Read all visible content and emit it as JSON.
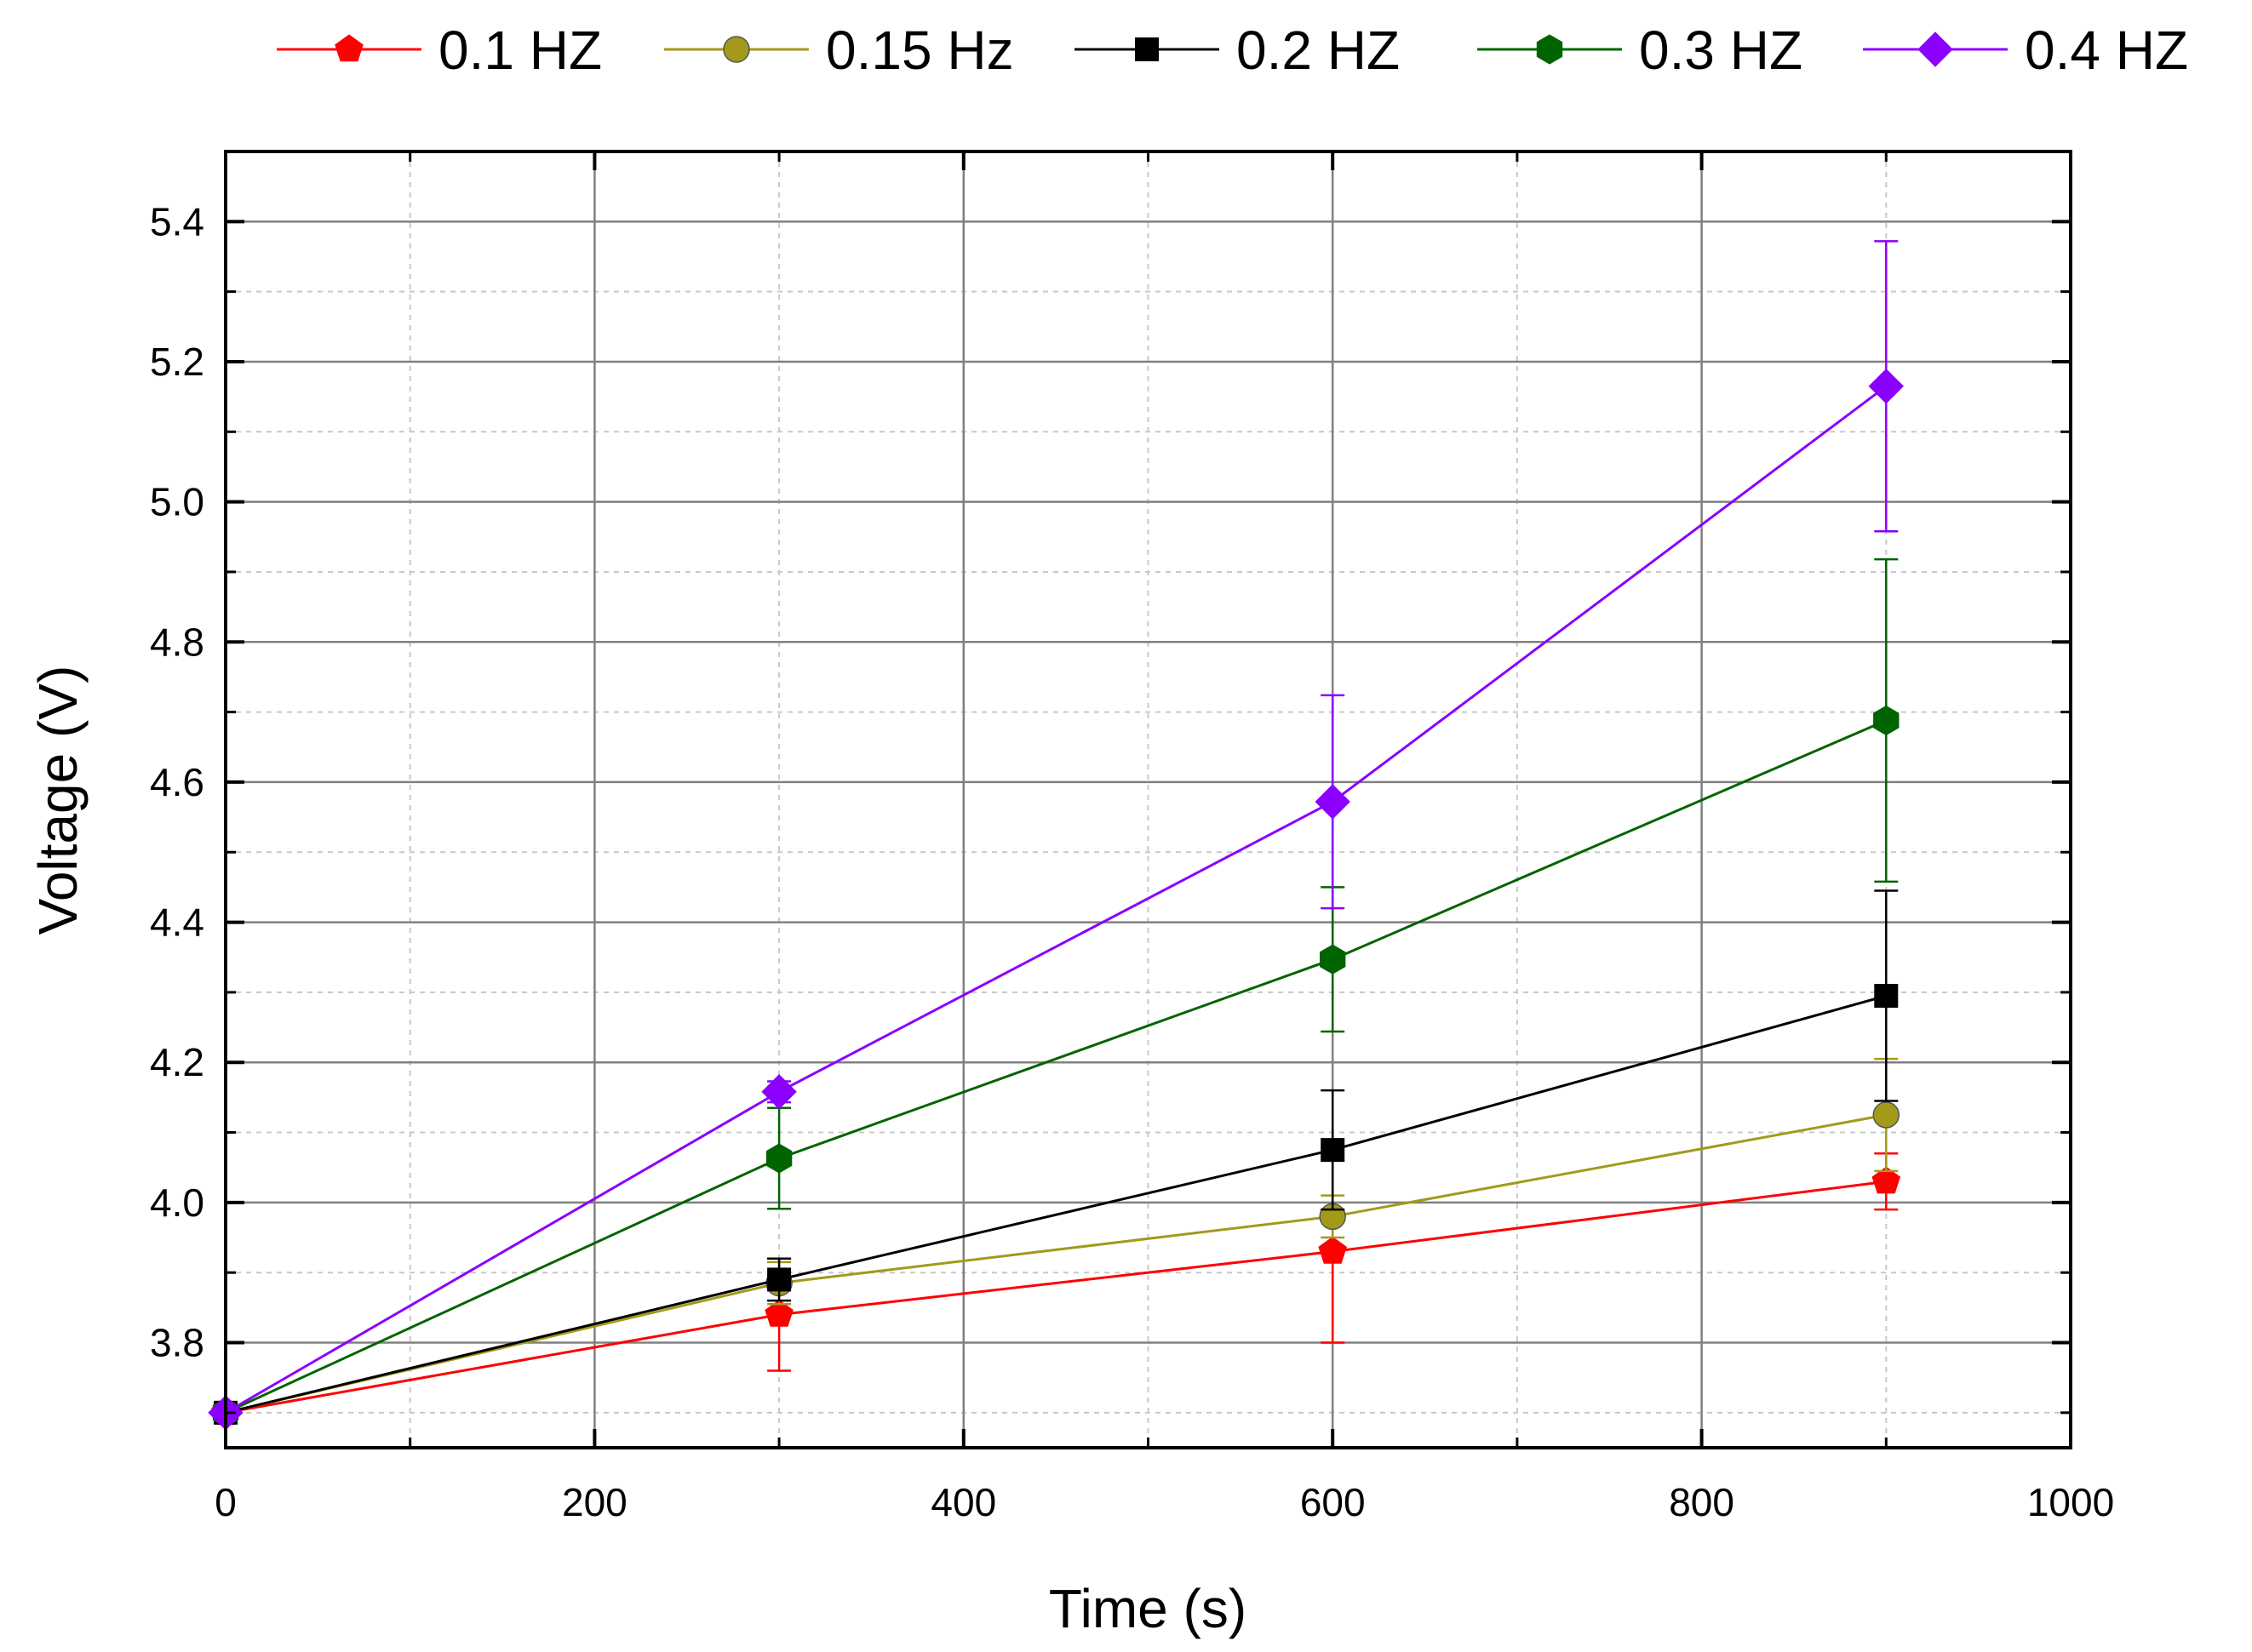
{
  "chart_data": {
    "type": "line",
    "title": "",
    "xlabel": "Time (s)",
    "ylabel": "Voltage (V)",
    "xlim": [
      0,
      1000
    ],
    "ylim": [
      3.65,
      5.5
    ],
    "x_ticks": [
      0,
      200,
      400,
      600,
      800,
      1000
    ],
    "y_ticks": [
      3.8,
      4.0,
      4.2,
      4.4,
      4.6,
      4.8,
      5.0,
      5.2,
      5.4
    ],
    "grid": true,
    "legend_position": "top",
    "series": [
      {
        "name": "0.1 HZ",
        "color": "#ff0000",
        "marker": "pentagon",
        "x": [
          0,
          300,
          600,
          900
        ],
        "y": [
          3.7,
          3.84,
          3.93,
          4.03
        ],
        "err": [
          0,
          0.08,
          0.13,
          0.04
        ]
      },
      {
        "name": "0.15 Hz",
        "color": "#a39a1a",
        "marker": "circle",
        "x": [
          0,
          300,
          600,
          900
        ],
        "y": [
          3.7,
          3.885,
          3.98,
          4.125
        ],
        "err": [
          0,
          0.03,
          0.03,
          0.08
        ]
      },
      {
        "name": "0.2 HZ",
        "color": "#000000",
        "marker": "square",
        "x": [
          0,
          300,
          600,
          900
        ],
        "y": [
          3.7,
          3.89,
          4.075,
          4.295
        ],
        "err": [
          0,
          0.03,
          0.085,
          0.15
        ]
      },
      {
        "name": "0.3 HZ",
        "color": "#006400",
        "marker": "hexagon",
        "x": [
          0,
          300,
          600,
          900
        ],
        "y": [
          3.7,
          4.063,
          4.347,
          4.688
        ],
        "err": [
          0,
          0.072,
          0.103,
          0.23
        ]
      },
      {
        "name": "0.4 HZ",
        "color": "#8b00ff",
        "marker": "diamond",
        "x": [
          0,
          300,
          600,
          900
        ],
        "y": [
          3.7,
          4.158,
          4.572,
          5.165
        ],
        "err": [
          0,
          0.015,
          0.152,
          0.207
        ]
      }
    ]
  }
}
